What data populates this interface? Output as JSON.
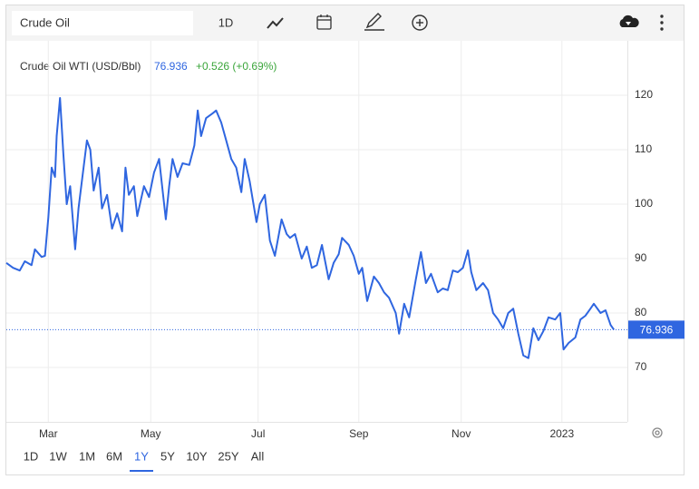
{
  "toolbar": {
    "search": "Crude Oil",
    "interval": "1D"
  },
  "header": {
    "name": "Crude Oil WTI (USD/Bbl)",
    "change": "+0.526 (+0.69%)"
  },
  "ranges": [
    "1D",
    "1W",
    "1M",
    "6M",
    "1Y",
    "5Y",
    "10Y",
    "25Y",
    "All"
  ],
  "active_range": 4,
  "chart_data": {
    "type": "line",
    "last_price": 76.936,
    "x": [
      0,
      4,
      8,
      11,
      15,
      17,
      21,
      23,
      25,
      27,
      29,
      30,
      32,
      34,
      36,
      38,
      41,
      43,
      45,
      48,
      50,
      52,
      55,
      57,
      60,
      63,
      66,
      69,
      71,
      73,
      76,
      78,
      82,
      85,
      88,
      91,
      95,
      97,
      99,
      102,
      105,
      109,
      112,
      114,
      116,
      119,
      123,
      125,
      128,
      131,
      134,
      137,
      140,
      142,
      145,
      149,
      151,
      154,
      157,
      160,
      164,
      167,
      169,
      172,
      176,
      179,
      182,
      185,
      188,
      192,
      195,
      198,
      200,
      204,
      207,
      210,
      212,
      215,
      219,
      222,
      225,
      228,
      232,
      234,
      237,
      240,
      244,
      247,
      250,
      253,
      257,
      260,
      263,
      266,
      269,
      272,
      275,
      277,
      280,
      284,
      287,
      290,
      293,
      296,
      299,
      302,
      305,
      308,
      311,
      314,
      317,
      320,
      323,
      327,
      330,
      332,
      335,
      339,
      342,
      345,
      348,
      350,
      354,
      357,
      360,
      362
    ],
    "series": [
      {
        "name": "Crude Oil WTI (USD/Bbl)",
        "color": "#2f66e0",
        "values": [
          89.2,
          88.3,
          87.8,
          89.5,
          88.8,
          91.7,
          90.3,
          90.5,
          97.5,
          106.7,
          105,
          112.5,
          119.5,
          109.2,
          100,
          103.3,
          91.7,
          99.2,
          104.2,
          111.7,
          110,
          102.5,
          106.7,
          99.2,
          101.7,
          95.5,
          98.3,
          95,
          106.7,
          101.7,
          103.3,
          97.8,
          103.3,
          101.3,
          105.8,
          108.3,
          97.2,
          103.3,
          108.3,
          105,
          107.5,
          107.2,
          110.8,
          117.2,
          112.5,
          115.8,
          116.7,
          117.2,
          115,
          111.7,
          108.3,
          106.7,
          102.2,
          108.3,
          104.2,
          96.7,
          100,
          101.7,
          93.3,
          90.5,
          97.2,
          94.5,
          93.8,
          94.5,
          90,
          92.2,
          88.3,
          88.8,
          92.5,
          86.2,
          89.2,
          90.8,
          93.8,
          92.5,
          90.5,
          87.2,
          88.3,
          82.2,
          86.7,
          85.5,
          83.8,
          82.8,
          80,
          76.2,
          81.7,
          79.2,
          86.2,
          91.2,
          85.5,
          87.2,
          83.8,
          84.5,
          84.2,
          87.8,
          87.5,
          88.3,
          91.5,
          87.5,
          84.2,
          85.5,
          84.2,
          80,
          78.8,
          77.2,
          80,
          80.8,
          76.2,
          72.2,
          71.7,
          77.2,
          75,
          76.7,
          79.2,
          78.8,
          80,
          73.3,
          74.5,
          75.5,
          78.8,
          79.5,
          80.8,
          81.7,
          80,
          80.5,
          77.8,
          76.936
        ]
      }
    ],
    "xlim": [
      0,
      370
    ],
    "xticks": [
      {
        "value": 25,
        "label": "Mar"
      },
      {
        "value": 86,
        "label": "May"
      },
      {
        "value": 150,
        "label": "Jul"
      },
      {
        "value": 210,
        "label": "Sep"
      },
      {
        "value": 271,
        "label": "Nov"
      },
      {
        "value": 331,
        "label": "2023"
      }
    ],
    "ylim": [
      60,
      130
    ],
    "yticks": [
      70,
      80,
      90,
      100,
      110,
      120
    ],
    "grid": true
  }
}
